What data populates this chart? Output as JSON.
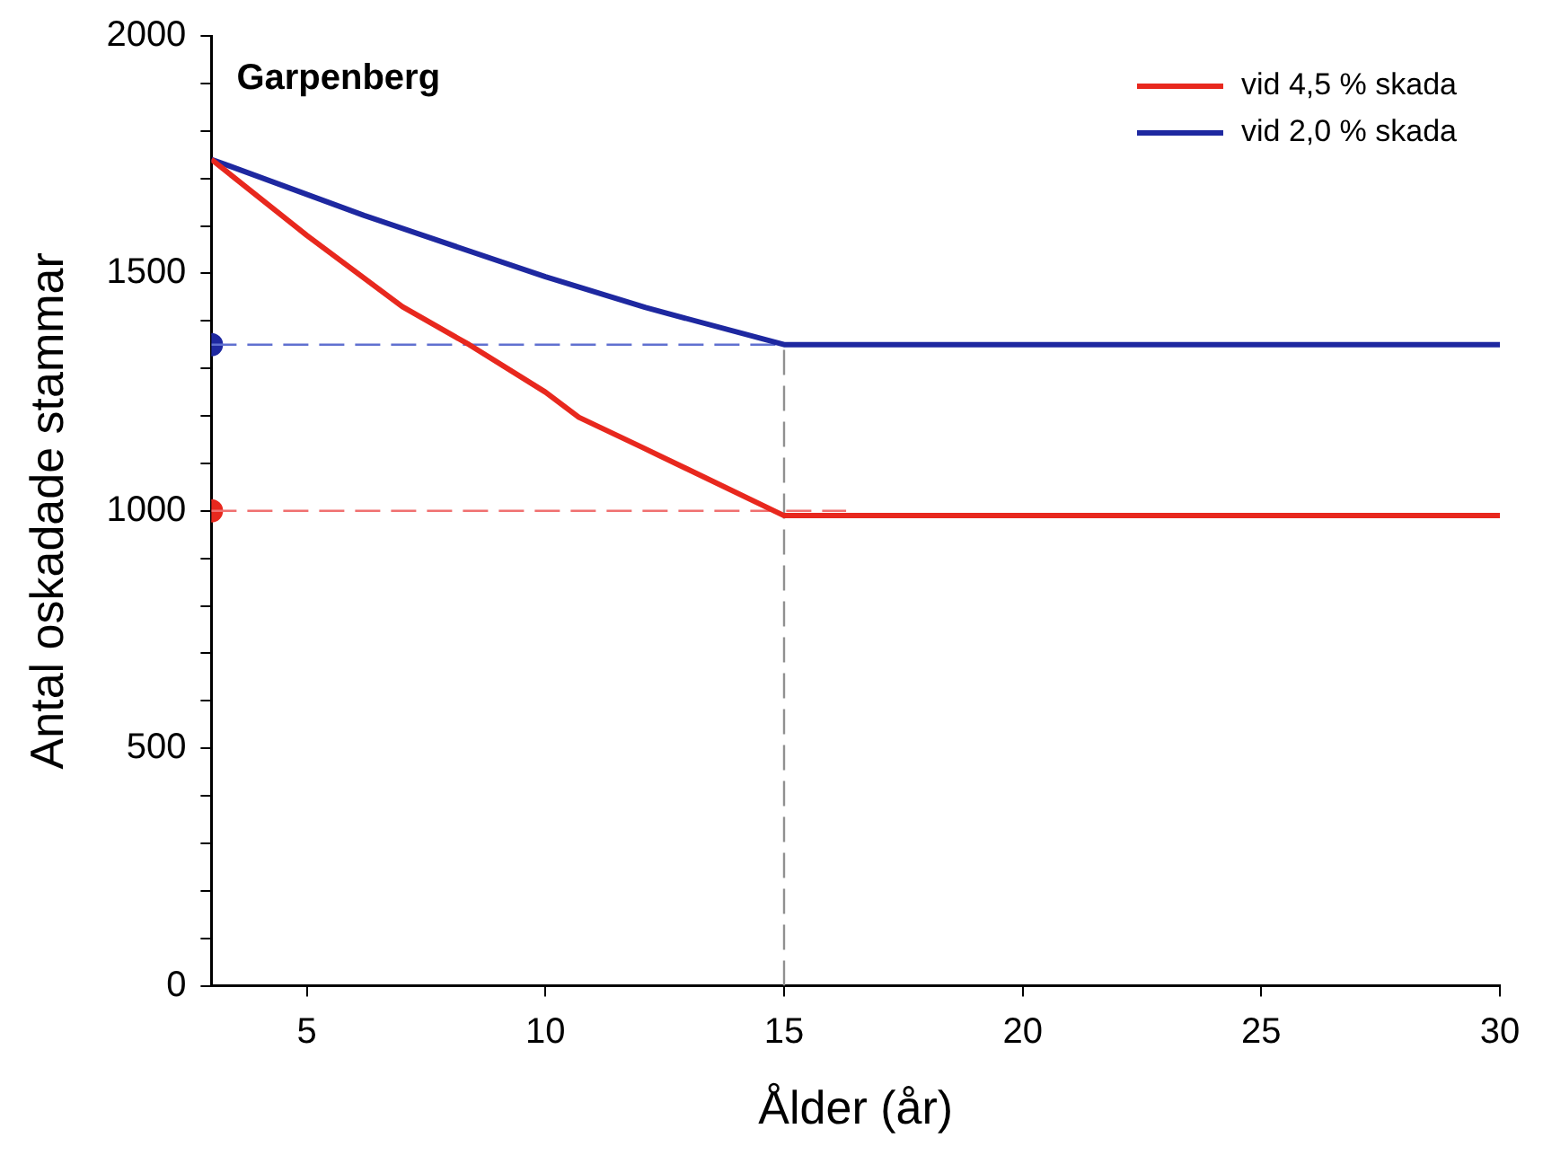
{
  "chart_data": {
    "type": "line",
    "title": "Garpenberg",
    "xlabel": "Ålder (år)",
    "ylabel": "Antal oskadade stammar",
    "xlim": [
      3,
      30
    ],
    "xticks": [
      5,
      10,
      15,
      20,
      25,
      30
    ],
    "ylim": [
      0,
      2000
    ],
    "yticks": [
      0,
      {
        "value": 100,
        "label": null
      },
      {
        "value": 200,
        "label": null
      },
      {
        "value": 300,
        "label": null
      },
      {
        "value": 400,
        "label": null
      },
      500,
      {
        "value": 600,
        "label": null
      },
      {
        "value": 700,
        "label": null
      },
      {
        "value": 800,
        "label": null
      },
      {
        "value": 900,
        "label": null
      },
      1000,
      {
        "value": 1100,
        "label": null
      },
      {
        "value": 1200,
        "label": null
      },
      {
        "value": 1300,
        "label": null
      },
      {
        "value": 1400,
        "label": null
      },
      1500,
      {
        "value": 1600,
        "label": null
      },
      {
        "value": 1700,
        "label": null
      },
      {
        "value": 1800,
        "label": null
      },
      {
        "value": 1900,
        "label": null
      },
      2000
    ],
    "grid": false,
    "legend": "top right",
    "marker": "none",
    "line_style": "solid",
    "series": [
      {
        "name": "vid 4,5 % skada",
        "color": "#e8281e",
        "x": [
          3,
          5,
          7,
          8.4,
          10,
          10.7,
          12,
          15,
          30
        ],
        "values": [
          1740,
          1580,
          1430,
          1350,
          1250,
          1197,
          1135,
          990,
          990
        ]
      },
      {
        "name": "vid 2,0 % skada",
        "color": "#1e28a0",
        "x": [
          3,
          6.2,
          10,
          12.1,
          15,
          30
        ],
        "values": [
          1740,
          1622,
          1493,
          1428,
          1350,
          1350
        ]
      },
      {
        "type": "line",
        "color": "#f07070",
        "line_style": "dashed",
        "x": [
          3,
          16.3
        ],
        "values": [
          1000,
          1000
        ]
      },
      {
        "type": "line",
        "color": "#6070d0",
        "line_style": "dashed",
        "x": [
          3,
          15
        ],
        "values": [
          1350,
          1350
        ]
      },
      {
        "type": "line",
        "color": "#909090",
        "line_style": "dashed",
        "x": [
          15,
          15
        ],
        "values": [
          0,
          1350
        ]
      },
      {
        "type": "scatter",
        "color": "#e8281e",
        "marker": "circle",
        "x": [
          3
        ],
        "values": [
          1000
        ]
      },
      {
        "type": "scatter",
        "color": "#1e28a0",
        "marker": "circle",
        "x": [
          3
        ],
        "values": [
          1350
        ]
      }
    ]
  }
}
